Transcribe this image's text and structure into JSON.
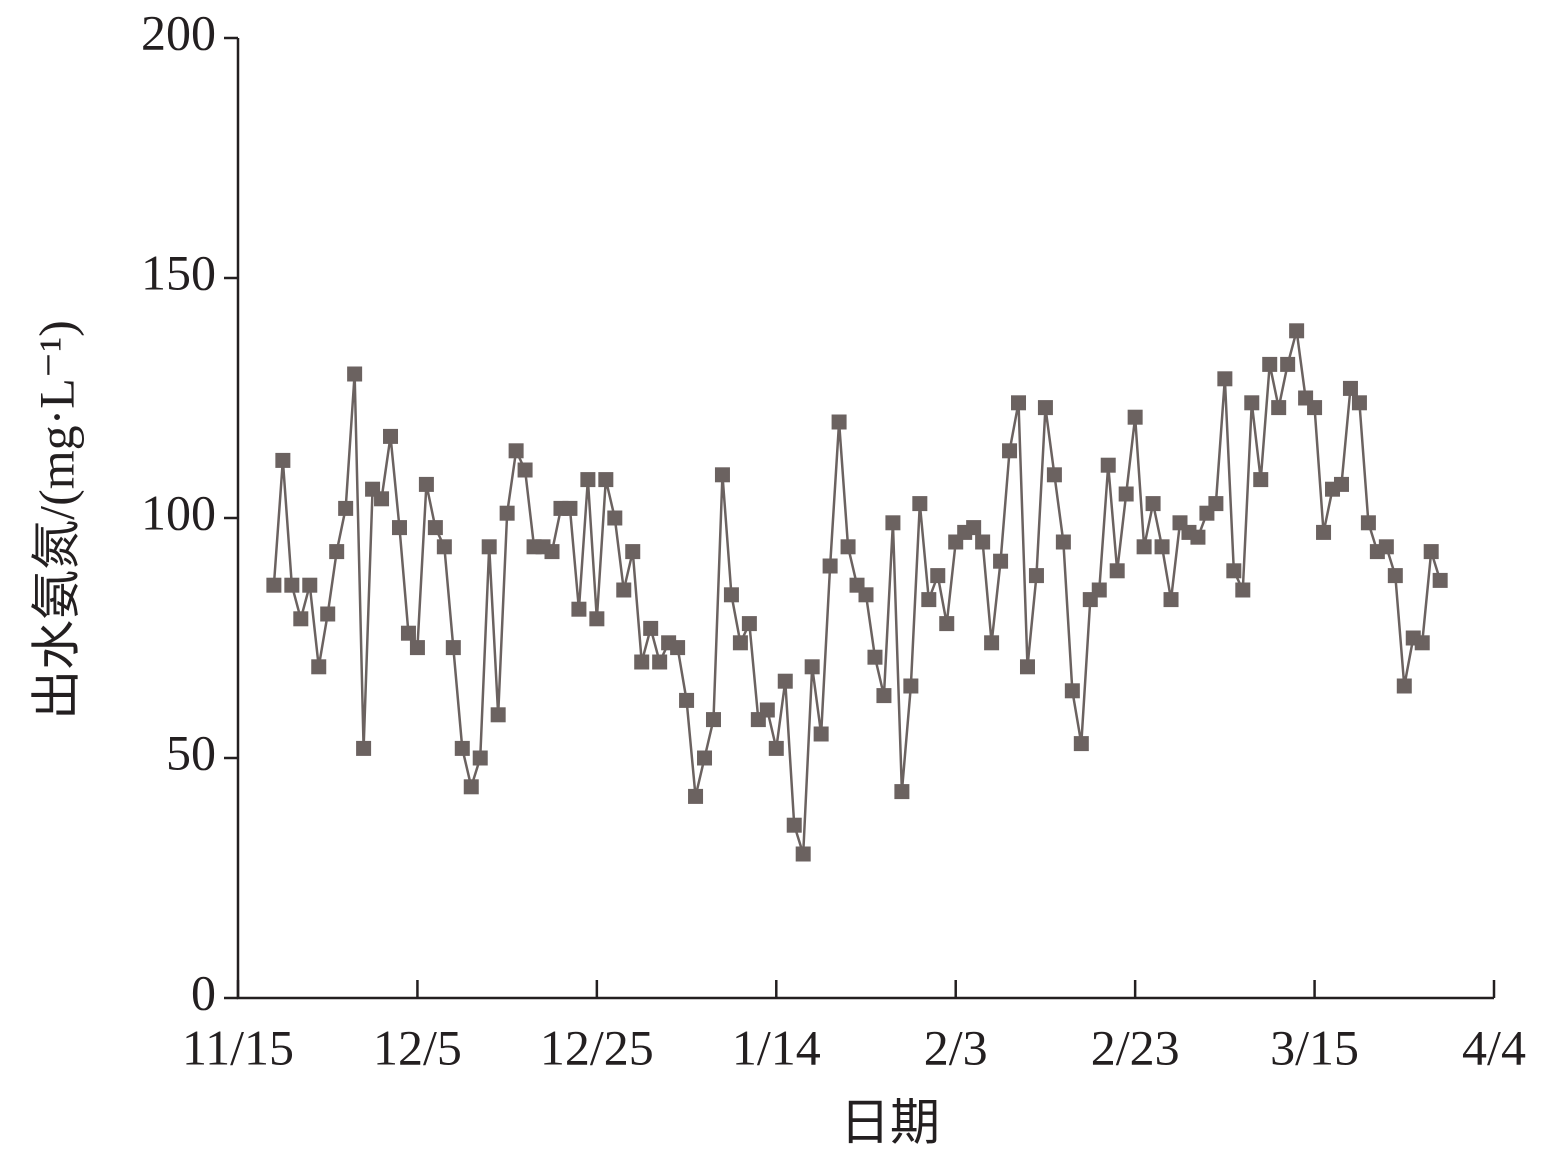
{
  "chart_data": {
    "type": "line",
    "xlabel": "日期",
    "ylabel": "出水氨氮/(mg·L⁻¹)",
    "color": "#6b6260",
    "x": [
      "11/19",
      "11/20",
      "11/21",
      "11/22",
      "11/23",
      "11/24",
      "11/25",
      "11/26",
      "11/27",
      "11/28",
      "11/29",
      "11/30",
      "12/1",
      "12/2",
      "12/3",
      "12/4",
      "12/5",
      "12/6",
      "12/7",
      "12/8",
      "12/9",
      "12/10",
      "12/11",
      "12/12",
      "12/13",
      "12/14",
      "12/15",
      "12/16",
      "12/17",
      "12/18",
      "12/19",
      "12/20",
      "12/21",
      "12/22",
      "12/23",
      "12/24",
      "12/25",
      "12/26",
      "12/27",
      "12/28",
      "12/29",
      "12/30",
      "12/31",
      "1/1",
      "1/2",
      "1/3",
      "1/4",
      "1/5",
      "1/6",
      "1/7",
      "1/8",
      "1/9",
      "1/10",
      "1/11",
      "1/12",
      "1/13",
      "1/14",
      "1/15",
      "1/16",
      "1/17",
      "1/18",
      "1/19",
      "1/20",
      "1/21",
      "1/22",
      "1/23",
      "1/24",
      "1/25",
      "1/26",
      "1/27",
      "1/28",
      "1/29",
      "1/30",
      "1/31",
      "2/1",
      "2/2",
      "2/3",
      "2/4",
      "2/5",
      "2/6",
      "2/7",
      "2/8",
      "2/9",
      "2/10",
      "2/11",
      "2/12",
      "2/13",
      "2/14",
      "2/15",
      "2/16",
      "2/17",
      "2/18",
      "2/19",
      "2/20",
      "2/21",
      "2/22",
      "2/23",
      "2/24",
      "2/25",
      "2/26",
      "2/27",
      "2/28",
      "3/1",
      "3/2",
      "3/3",
      "3/4",
      "3/5",
      "3/6",
      "3/7",
      "3/8",
      "3/9",
      "3/10",
      "3/11",
      "3/12",
      "3/13",
      "3/14",
      "3/15",
      "3/16",
      "3/17",
      "3/18",
      "3/19",
      "3/20",
      "3/21",
      "3/22",
      "3/23",
      "3/24",
      "3/25",
      "3/26",
      "3/27",
      "3/28",
      "3/29"
    ],
    "values": [
      86,
      112,
      86,
      79,
      86,
      69,
      80,
      93,
      102,
      130,
      52,
      106,
      104,
      117,
      98,
      76,
      73,
      107,
      98,
      94,
      73,
      52,
      44,
      50,
      94,
      59,
      101,
      114,
      110,
      94,
      94,
      93,
      102,
      102,
      81,
      108,
      79,
      108,
      100,
      85,
      93,
      70,
      77,
      70,
      74,
      73,
      62,
      42,
      50,
      58,
      109,
      84,
      74,
      78,
      58,
      60,
      52,
      66,
      36,
      30,
      69,
      55,
      90,
      120,
      94,
      86,
      84,
      71,
      63,
      99,
      43,
      65,
      103,
      83,
      88,
      78,
      95,
      97,
      98,
      95,
      74,
      91,
      114,
      124,
      69,
      88,
      123,
      109,
      95,
      64,
      53,
      83,
      85,
      111,
      89,
      105,
      121,
      94,
      103,
      94,
      83,
      99,
      97,
      96,
      101,
      103,
      129,
      89,
      85,
      124,
      108,
      132,
      123,
      132,
      139,
      125,
      123,
      97,
      106,
      107,
      127,
      124,
      99,
      93,
      94,
      88,
      65,
      75,
      74,
      93,
      87
    ],
    "xlim": [
      "11/15",
      "4/4"
    ],
    "xticks": [
      "11/15",
      "12/5",
      "12/25",
      "1/14",
      "2/3",
      "2/23",
      "3/15",
      "4/4"
    ],
    "ylim": [
      0,
      200
    ],
    "yticks": [
      0,
      50,
      100,
      150,
      200
    ]
  }
}
